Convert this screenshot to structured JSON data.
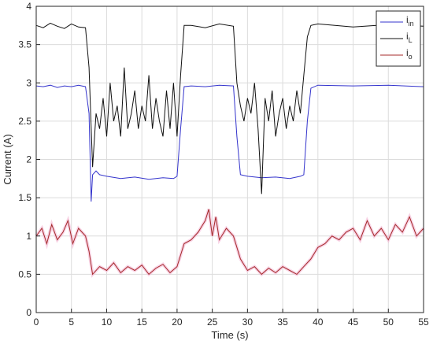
{
  "chart_data": {
    "type": "line",
    "title": "",
    "xlabel": "Time (s)",
    "ylabel": "Current (A)",
    "xlim": [
      0,
      55
    ],
    "ylim": [
      0,
      4
    ],
    "xticks": [
      0,
      5,
      10,
      15,
      20,
      25,
      30,
      35,
      40,
      45,
      50,
      55
    ],
    "yticks": [
      0,
      0.5,
      1,
      1.5,
      2,
      2.5,
      3,
      3.5,
      4
    ],
    "grid": true,
    "legend_position": "top-right",
    "series": [
      {
        "name": "i_in",
        "legend_main": "i",
        "legend_sub": "in",
        "color": "#3333cc",
        "x": [
          0,
          1,
          2,
          3,
          4,
          5,
          6,
          7,
          7.5,
          7.8,
          8,
          8.5,
          9,
          10,
          12,
          14,
          16,
          18,
          19.5,
          20,
          20.5,
          21,
          22,
          24,
          26,
          28,
          28.5,
          29,
          30,
          32,
          34,
          36,
          37.5,
          38,
          38.5,
          39,
          40,
          45,
          50,
          55
        ],
        "y": [
          2.96,
          2.95,
          2.97,
          2.94,
          2.96,
          2.95,
          2.97,
          2.95,
          2.6,
          1.45,
          1.8,
          1.85,
          1.8,
          1.78,
          1.75,
          1.77,
          1.74,
          1.76,
          1.75,
          1.78,
          2.4,
          2.95,
          2.96,
          2.95,
          2.97,
          2.96,
          2.3,
          1.8,
          1.78,
          1.76,
          1.77,
          1.75,
          1.78,
          1.8,
          2.5,
          2.93,
          2.97,
          2.96,
          2.97,
          2.95
        ]
      },
      {
        "name": "i_L",
        "legend_main": "i",
        "legend_sub": "L",
        "color": "#111111",
        "x": [
          0,
          1,
          2,
          3,
          4,
          5,
          6,
          7,
          7.5,
          8,
          8.5,
          9,
          9.5,
          10,
          10.5,
          11,
          11.5,
          12,
          12.5,
          13,
          13.5,
          14,
          14.5,
          15,
          15.5,
          16,
          16.5,
          17,
          17.5,
          18,
          18.5,
          19,
          19.5,
          20,
          20.5,
          21,
          22,
          24,
          26,
          28,
          28.5,
          29,
          29.5,
          30,
          30.5,
          31,
          31.5,
          32,
          32.5,
          33,
          33.5,
          34,
          34.5,
          35,
          35.5,
          36,
          36.5,
          37,
          37.5,
          38,
          38.5,
          39,
          40,
          45,
          50,
          55
        ],
        "y": [
          3.75,
          3.72,
          3.78,
          3.74,
          3.71,
          3.77,
          3.73,
          3.72,
          3.2,
          1.9,
          2.6,
          2.4,
          2.8,
          2.3,
          3.0,
          2.5,
          2.7,
          2.3,
          3.2,
          2.4,
          2.6,
          2.9,
          2.4,
          2.7,
          2.5,
          3.1,
          2.4,
          2.8,
          2.5,
          2.3,
          2.9,
          2.4,
          3.0,
          2.3,
          3.1,
          3.75,
          3.75,
          3.72,
          3.77,
          3.74,
          3.0,
          2.7,
          2.5,
          2.8,
          2.6,
          3.0,
          2.4,
          1.55,
          2.8,
          2.5,
          2.9,
          2.3,
          2.6,
          2.8,
          2.4,
          2.7,
          2.5,
          2.9,
          2.6,
          3.1,
          3.6,
          3.75,
          3.77,
          3.73,
          3.76,
          3.74
        ]
      },
      {
        "name": "i_o",
        "legend_main": "i",
        "legend_sub": "o",
        "color": "#a52a2a",
        "x": [
          0,
          0.8,
          1.5,
          2.2,
          3,
          3.8,
          4.5,
          5.2,
          6,
          7,
          7.5,
          8,
          9,
          10,
          11,
          12,
          13,
          14,
          15,
          16,
          17,
          18,
          19,
          20,
          21,
          22,
          23,
          24,
          24.5,
          25,
          25.5,
          26,
          27,
          28,
          29,
          30,
          31,
          32,
          33,
          34,
          35,
          36,
          37,
          38,
          39,
          40,
          41,
          42,
          43,
          44,
          45,
          46,
          47,
          48,
          49,
          50,
          51,
          52,
          53,
          54,
          55
        ],
        "y": [
          1.0,
          1.1,
          0.9,
          1.15,
          0.95,
          1.05,
          1.2,
          0.9,
          1.1,
          1.0,
          0.8,
          0.5,
          0.6,
          0.55,
          0.65,
          0.52,
          0.6,
          0.55,
          0.62,
          0.5,
          0.58,
          0.63,
          0.52,
          0.6,
          0.9,
          0.95,
          1.05,
          1.2,
          1.35,
          1.0,
          1.25,
          0.95,
          1.1,
          1.0,
          0.7,
          0.55,
          0.6,
          0.5,
          0.58,
          0.52,
          0.6,
          0.55,
          0.5,
          0.6,
          0.7,
          0.85,
          0.9,
          1.0,
          0.95,
          1.05,
          1.1,
          0.95,
          1.2,
          1.0,
          1.1,
          0.95,
          1.15,
          1.05,
          1.25,
          1.0,
          1.1
        ]
      }
    ]
  }
}
